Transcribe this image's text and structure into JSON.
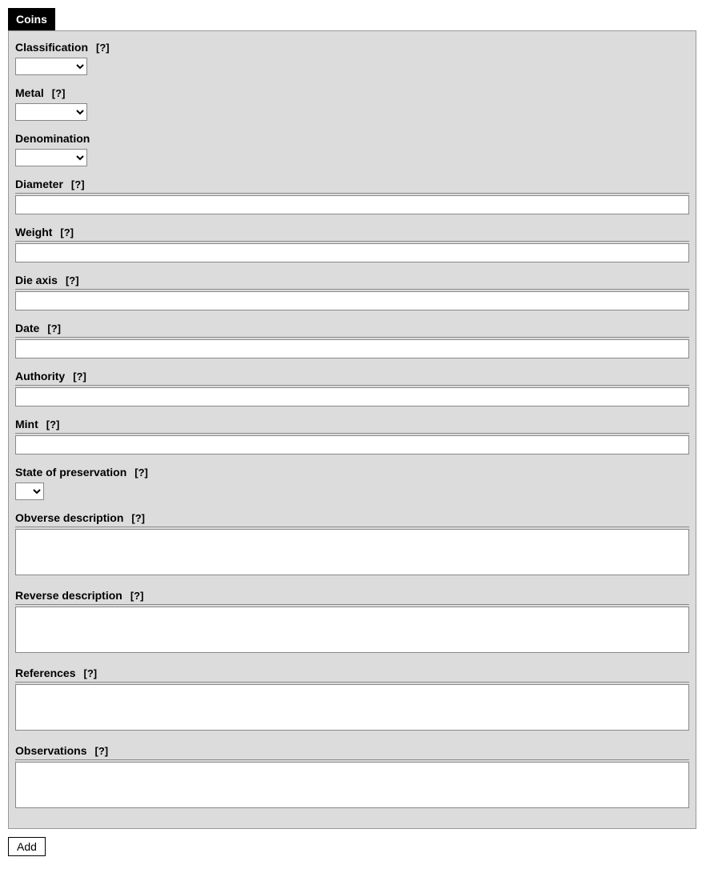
{
  "tab": {
    "label": "Coins"
  },
  "help_marker": "[?]",
  "fields": {
    "classification": {
      "label": "Classification",
      "has_help": true,
      "type": "select-small",
      "value": ""
    },
    "metal": {
      "label": "Metal",
      "has_help": true,
      "type": "select-small",
      "value": ""
    },
    "denomination": {
      "label": "Denomination",
      "has_help": false,
      "type": "select-small",
      "value": ""
    },
    "diameter": {
      "label": "Diameter",
      "has_help": true,
      "type": "text",
      "value": ""
    },
    "weight": {
      "label": "Weight",
      "has_help": true,
      "type": "text",
      "value": ""
    },
    "die_axis": {
      "label": "Die axis",
      "has_help": true,
      "type": "text",
      "value": ""
    },
    "date": {
      "label": "Date",
      "has_help": true,
      "type": "text",
      "value": ""
    },
    "authority": {
      "label": "Authority",
      "has_help": true,
      "type": "text",
      "value": ""
    },
    "mint": {
      "label": "Mint",
      "has_help": true,
      "type": "text",
      "value": ""
    },
    "state_of_preservation": {
      "label": "State of preservation",
      "has_help": true,
      "type": "select-tiny",
      "value": ""
    },
    "obverse_description": {
      "label": "Obverse description",
      "has_help": true,
      "type": "textarea",
      "value": ""
    },
    "reverse_description": {
      "label": "Reverse description",
      "has_help": true,
      "type": "textarea",
      "value": ""
    },
    "references": {
      "label": "References",
      "has_help": true,
      "type": "textarea",
      "value": ""
    },
    "observations": {
      "label": "Observations",
      "has_help": true,
      "type": "textarea",
      "value": ""
    }
  },
  "add_button": {
    "label": "Add"
  },
  "colors": {
    "tab_bg": "#000000",
    "tab_fg": "#ffffff",
    "panel_bg": "#dcdcdc",
    "panel_border": "#999999",
    "input_bg": "#ffffff",
    "input_border": "#888888",
    "page_bg": "#ffffff",
    "text": "#000000"
  }
}
